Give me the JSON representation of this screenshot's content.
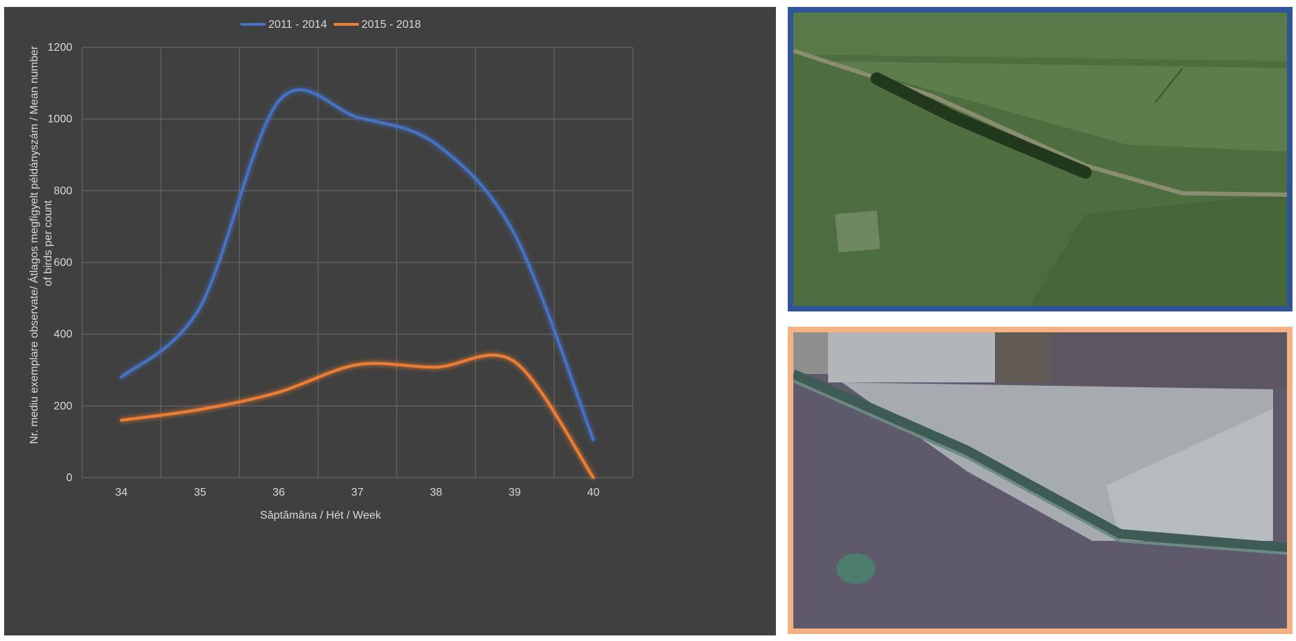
{
  "chart_data": {
    "type": "line",
    "title": "",
    "xlabel": "Săptămâna / Hét / Week",
    "ylabel": "Nr. mediu exemplare observate/ Átlagos megfigyelt példányszám / Mean number of birds per count",
    "ylabel_lines": [
      "Nr. mediu exemplare observate/ Átlagos megfigyelt példányszám / Mean number",
      "of birds per count"
    ],
    "categories": [
      "34",
      "35",
      "36",
      "37",
      "38",
      "39",
      "40"
    ],
    "ylim": [
      0,
      1200
    ],
    "yticks": [
      "0",
      "200",
      "400",
      "600",
      "800",
      "1000",
      "1200"
    ],
    "grid": true,
    "legend_position": "top",
    "series": [
      {
        "name": "2011 - 2014",
        "color": "#4472c4",
        "values": [
          280,
          475,
          1050,
          1005,
          930,
          678,
          105
        ]
      },
      {
        "name": "2015 - 2018",
        "color": "#ed7d31",
        "values": [
          160,
          190,
          238,
          315,
          308,
          323,
          0
        ]
      }
    ]
  },
  "photos": {
    "top": {
      "border_color": "#2f5597",
      "description_icon": "satellite-photo-summer"
    },
    "bottom": {
      "border_color": "#f4b183",
      "description_icon": "satellite-photo-autumn"
    }
  }
}
